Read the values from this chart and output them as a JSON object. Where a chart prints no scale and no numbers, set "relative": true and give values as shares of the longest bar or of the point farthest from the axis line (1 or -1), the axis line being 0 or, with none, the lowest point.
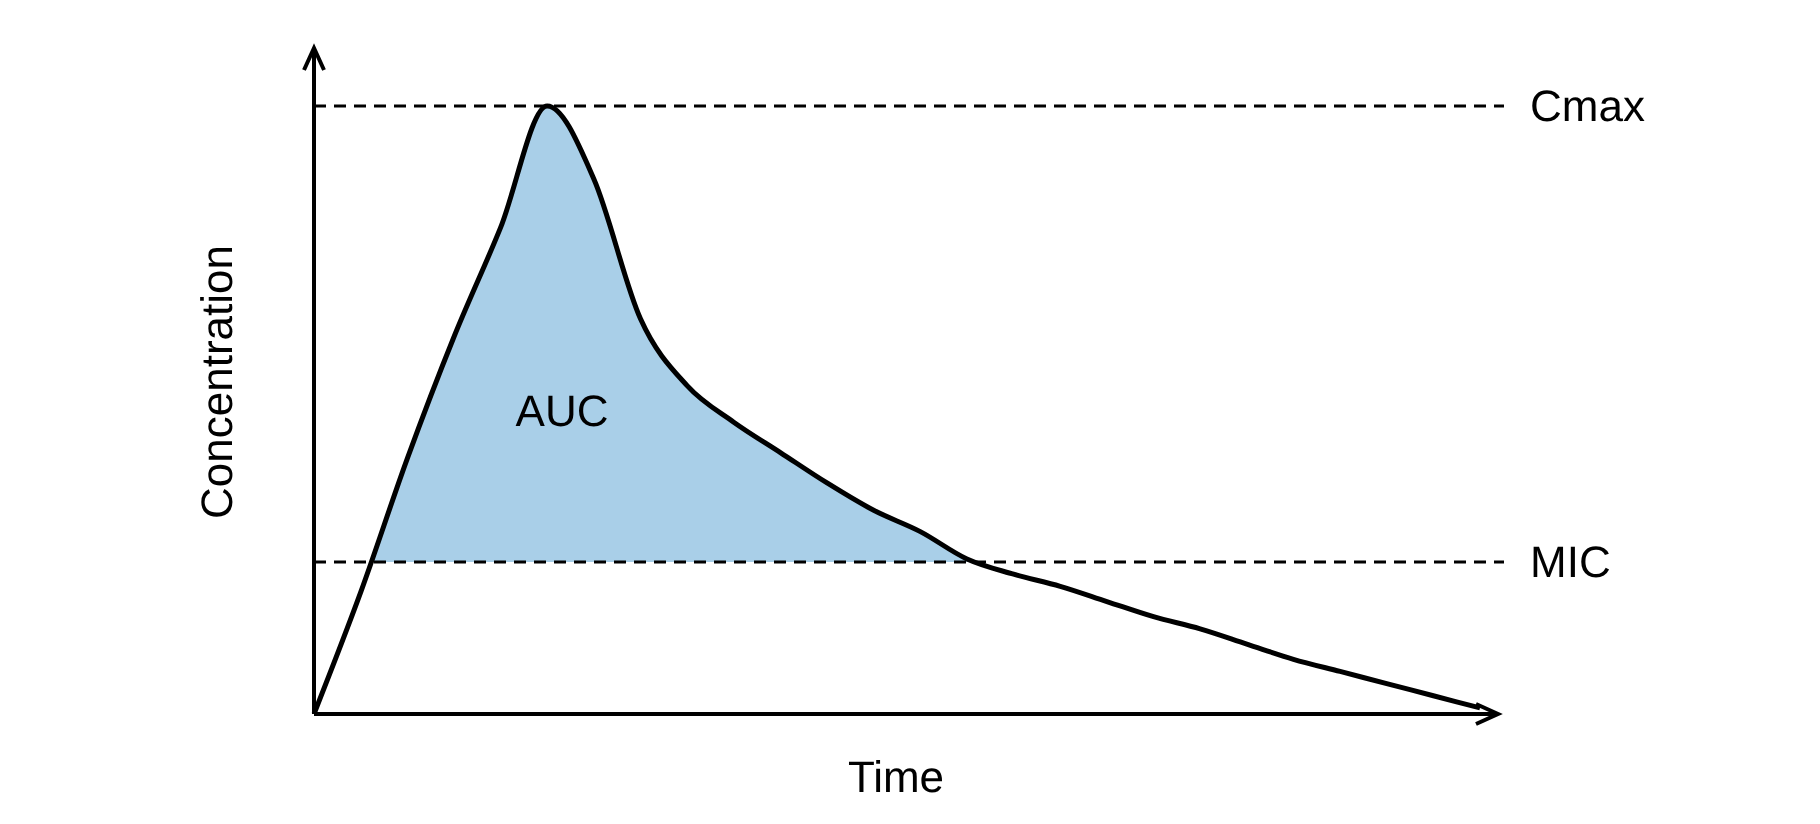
{
  "chart_data": {
    "type": "line",
    "relative": true,
    "xlabel": "Time",
    "ylabel": "Concentration",
    "categories": [
      null,
      null,
      null,
      null,
      null,
      null,
      null,
      null,
      null,
      null,
      null,
      null,
      null,
      null,
      null,
      null,
      null,
      null,
      null,
      null,
      null,
      null,
      null,
      null,
      null,
      null
    ],
    "series": [
      {
        "color": "#000000",
        "values": [
          0,
          0.2,
          0.42,
          0.62,
          0.8,
          1,
          0.88,
          0.65,
          0.54,
          0.48,
          0.43,
          0.38,
          0.335,
          0.3,
          0.255,
          0.23,
          0.21,
          0.185,
          0.16,
          0.14,
          0.115,
          0.09,
          0.07,
          0.05,
          0.03,
          0.01
        ],
        "lower": [
          null,
          0.25,
          0.25,
          0.25,
          0.25,
          0.25,
          0.25,
          0.25,
          0.25,
          0.25,
          0.25,
          0.25,
          0.25,
          0.25,
          0.25,
          0.25,
          null,
          null,
          null,
          null,
          null,
          null,
          null,
          null,
          null,
          null
        ],
        "upper": [
          null,
          0.2,
          0.42,
          0.62,
          0.8,
          1,
          0.88,
          0.65,
          0.54,
          0.48,
          0.43,
          0.38,
          0.335,
          0.3,
          0.255,
          0.23,
          null,
          null,
          null,
          null,
          null,
          null,
          null,
          null,
          null,
          null
        ]
      }
    ],
    "ref_lines": [
      {
        "axis": "y",
        "value": 1,
        "label": "Cmax",
        "line_style": "dashed",
        "color": "#000000"
      },
      {
        "axis": "y",
        "value": 0.25,
        "label": "MIC",
        "line_style": "dashed",
        "color": "#000000"
      }
    ],
    "annotations": [
      "AUC"
    ],
    "marker": "none",
    "line_style": "solid"
  }
}
